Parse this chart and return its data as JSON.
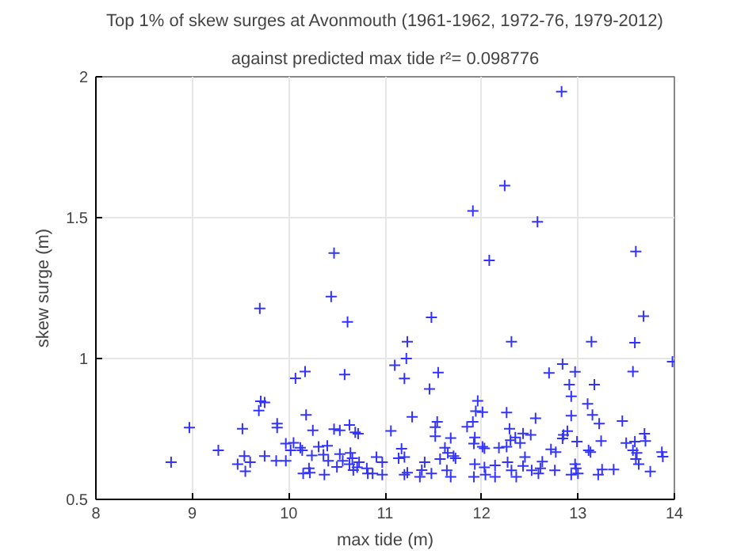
{
  "chart_data": {
    "type": "scatter",
    "title": "Top 1% of skew surges at Avonmouth (1961-1962, 1972-76, 1979-2012)",
    "subtitle": "against predicted max tide r²= 0.098776",
    "xlabel": "max tide (m)",
    "ylabel": "skew surge (m)",
    "xlim": [
      8,
      14
    ],
    "ylim": [
      0.5,
      2
    ],
    "xticks": [
      8,
      9,
      10,
      11,
      12,
      13,
      14
    ],
    "yticks": [
      0.5,
      1,
      1.5,
      2
    ],
    "grid": true,
    "marker": "cross",
    "series": [
      {
        "color": "#3333ff",
        "x": [
          10.47,
          9.7,
          10.44,
          10.61,
          11.23,
          11.22,
          11.1,
          11.2,
          10.07,
          10.17,
          10.58,
          9.69,
          9.71,
          9.75,
          10.18,
          9.88,
          9.88,
          10.25,
          8.97,
          9.52,
          10.47,
          10.53,
          10.63,
          10.69,
          10.72,
          11.06,
          11.28,
          9.27,
          9.97,
          10.05,
          10.12,
          10.02,
          8.78,
          9.47,
          9.54,
          9.6,
          9.55,
          9.75,
          9.87,
          9.97,
          10.14,
          10.24,
          10.31,
          10.4,
          10.36,
          10.41,
          10.53,
          10.56,
          10.5,
          10.64,
          10.66,
          10.63,
          10.73,
          10.71,
          10.67,
          10.21,
          10.15,
          10.22,
          10.37,
          10.81,
          10.82,
          10.87,
          10.91,
          10.97,
          10.97,
          11.17,
          11.14,
          11.2,
          11.2,
          11.23,
          12.08,
          13.6,
          11.48,
          13.68,
          12.31,
          13.14,
          13.59,
          13.98,
          12.84,
          12.7,
          12.97,
          13.57,
          11.55,
          11.46,
          12.91,
          12.93,
          13.17,
          13.1,
          13.15,
          12.56,
          12.93,
          13.22,
          13.46,
          11.54,
          11.52,
          11.96,
          11.94,
          12.01,
          11.85,
          11.91,
          12.26,
          12.29,
          12.35,
          12.43,
          12.51,
          12.4,
          12.3,
          11.68,
          11.52,
          11.93,
          11.92,
          12.01,
          12.03,
          12.18,
          12.26,
          12.85,
          12.89,
          12.84,
          12.99,
          12.72,
          12.77,
          13.11,
          13.13,
          13.24,
          13.5,
          13.59,
          13.69,
          13.7,
          13.57,
          13.6,
          13.63,
          13.87,
          13.88,
          13.75,
          11.62,
          11.65,
          11.57,
          11.71,
          11.73,
          11.41,
          11.38,
          11.36,
          11.48,
          11.64,
          11.68,
          11.93,
          11.92,
          12.04,
          12.03,
          12.14,
          12.14,
          12.27,
          12.31,
          12.36,
          12.43,
          12.45,
          12.52,
          12.61,
          12.59,
          12.63,
          12.76,
          12.93,
          12.97,
          13.0,
          12.98,
          13.21,
          13.25,
          13.37,
          13.61,
          12.83,
          12.24,
          11.91,
          12.58
        ],
        "values": [
          1.374,
          1.178,
          1.22,
          1.13,
          1.06,
          1.0,
          0.976,
          0.929,
          0.93,
          0.954,
          0.943,
          0.815,
          0.848,
          0.844,
          0.8,
          0.769,
          0.755,
          0.745,
          0.755,
          0.751,
          0.749,
          0.745,
          0.764,
          0.738,
          0.733,
          0.743,
          0.793,
          0.674,
          0.698,
          0.701,
          0.683,
          0.674,
          0.632,
          0.625,
          0.654,
          0.632,
          0.6,
          0.654,
          0.637,
          0.637,
          0.674,
          0.656,
          0.687,
          0.69,
          0.659,
          0.637,
          0.661,
          0.637,
          0.615,
          0.665,
          0.646,
          0.625,
          0.632,
          0.614,
          0.604,
          0.61,
          0.592,
          0.595,
          0.588,
          0.61,
          0.592,
          0.592,
          0.65,
          0.632,
          0.588,
          0.68,
          0.646,
          0.65,
          0.588,
          0.595,
          1.348,
          1.38,
          1.146,
          1.15,
          1.06,
          1.06,
          1.056,
          0.989,
          0.98,
          0.949,
          0.953,
          0.954,
          0.95,
          0.892,
          0.907,
          0.866,
          0.907,
          0.839,
          0.8,
          0.788,
          0.797,
          0.769,
          0.778,
          0.775,
          0.756,
          0.85,
          0.813,
          0.81,
          0.758,
          0.775,
          0.808,
          0.751,
          0.72,
          0.734,
          0.729,
          0.7,
          0.71,
          0.718,
          0.724,
          0.72,
          0.698,
          0.687,
          0.681,
          0.683,
          0.687,
          0.729,
          0.742,
          0.716,
          0.705,
          0.678,
          0.668,
          0.674,
          0.668,
          0.707,
          0.7,
          0.705,
          0.733,
          0.707,
          0.674,
          0.643,
          0.625,
          0.668,
          0.652,
          0.599,
          0.683,
          0.665,
          0.643,
          0.654,
          0.646,
          0.632,
          0.604,
          0.58,
          0.592,
          0.603,
          0.58,
          0.625,
          0.58,
          0.588,
          0.614,
          0.58,
          0.621,
          0.632,
          0.603,
          0.58,
          0.619,
          0.65,
          0.603,
          0.61,
          0.592,
          0.634,
          0.603,
          0.588,
          0.625,
          0.592,
          0.61,
          0.588,
          0.606,
          0.606,
          0.665,
          1.947,
          1.614,
          1.524,
          1.485
        ]
      }
    ]
  }
}
